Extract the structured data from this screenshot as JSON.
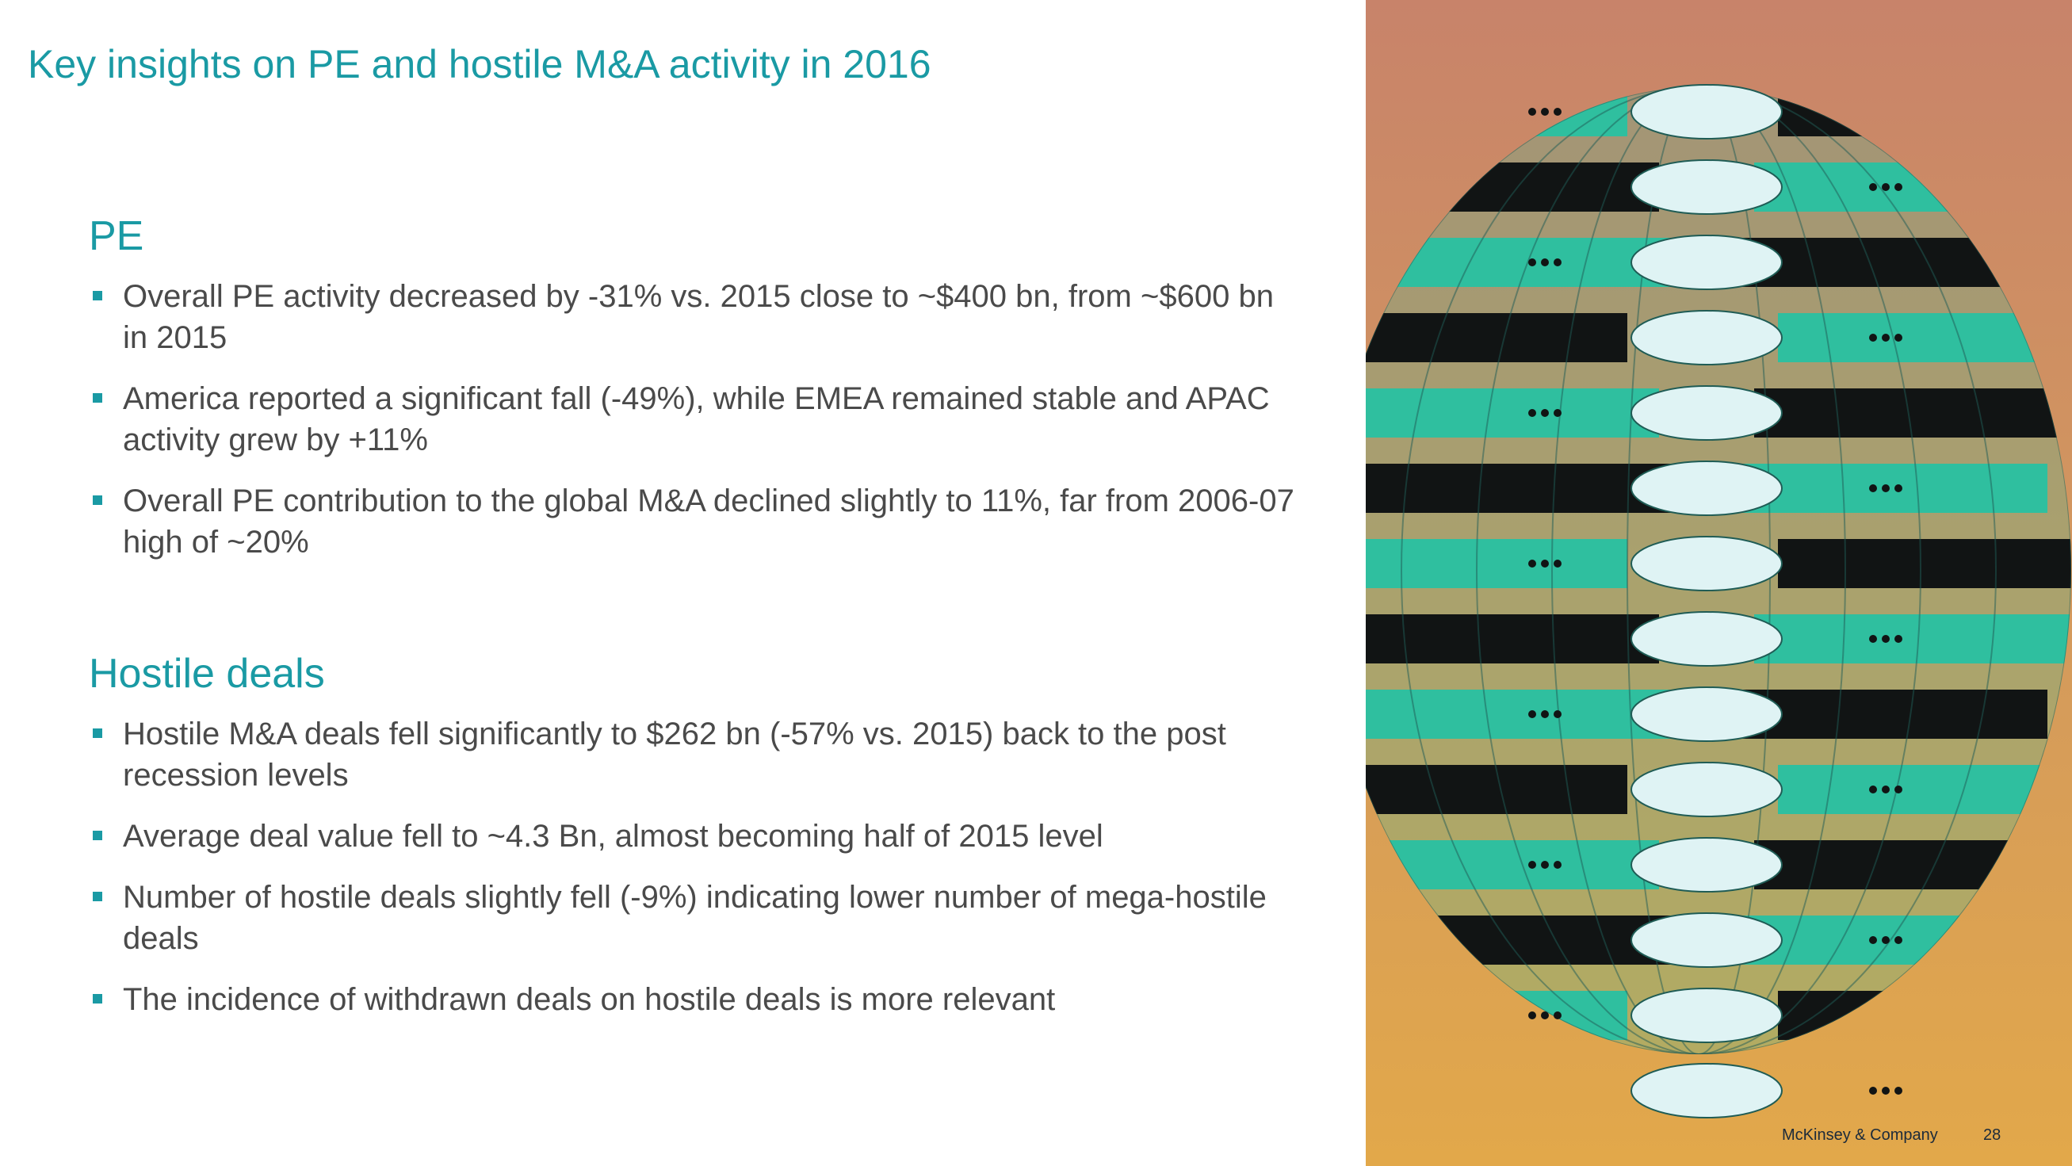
{
  "title": "Key insights on PE and hostile M&A activity in 2016",
  "sections": [
    {
      "heading": "PE",
      "bullets": [
        "Overall PE activity decreased by -31% vs. 2015 close to ~$400 bn, from ~$600 bn in 2015",
        "America reported a significant fall (-49%), while EMEA remained stable and APAC activity grew by +11%",
        "Overall PE contribution to the global M&A declined slightly to 11%, far from 2006-07 high of ~20%"
      ]
    },
    {
      "heading": "Hostile deals",
      "bullets": [
        "Hostile M&A deals fell significantly to $262 bn (-57% vs. 2015) back to the post recession levels",
        "Average deal value fell to ~4.3 Bn, almost becoming half of 2015 level",
        "Number of hostile deals slightly fell (-9%) indicating lower number of mega-hostile deals",
        "The incidence of withdrawn deals on hostile deals is more relevant"
      ]
    }
  ],
  "illustration": {
    "description_icon": "globe-of-handshakes-illustration",
    "colors": {
      "background_top": "#c8836a",
      "background_bottom": "#e2a84a",
      "sleeve_teal": "#2fbf9f",
      "sleeve_black": "#111414",
      "hand_light": "#dff3f4",
      "globe_line": "#1f5c55"
    }
  },
  "footer": {
    "brand": "McKinsey & Company",
    "page_number": "28"
  },
  "colors": {
    "accent": "#1a9aa4",
    "body_text": "#4a4a4a"
  }
}
